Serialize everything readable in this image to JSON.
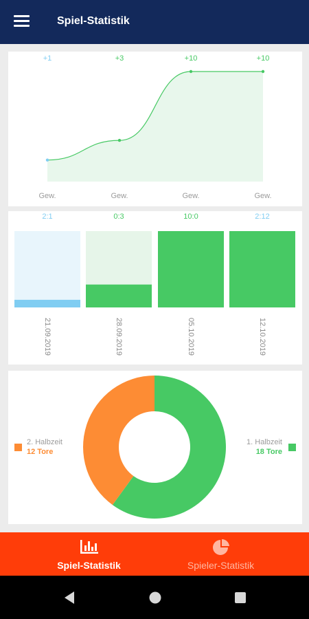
{
  "app_bar": {
    "title": "Spiel-Statistik",
    "menu_icon": "hamburger-menu-icon"
  },
  "colors": {
    "app_bar": "#13295b",
    "accent_green": "#47c964",
    "light_blue": "#80cdf2",
    "orange": "#fd8c34",
    "bottom_nav": "#ff3d09"
  },
  "chart_data": [
    {
      "type": "area",
      "categories": [
        "Gew.",
        "Gew.",
        "Gew.",
        "Gew."
      ],
      "values": [
        1,
        3,
        10,
        10
      ],
      "point_labels": [
        "+1",
        "+3",
        "+10",
        "+10"
      ],
      "line_color": "#47c964",
      "grid": false,
      "legend": "none"
    },
    {
      "type": "bar",
      "categories": [
        "21.09.2019",
        "28.09.2019",
        "05.10.2019",
        "12.10.2019"
      ],
      "scores": [
        "2:1",
        "0:3",
        "10:0",
        "2:12"
      ],
      "values": [
        0.1,
        0.3,
        1.0,
        1.0
      ],
      "score_colors": [
        "#80cdf2",
        "#47c964",
        "#47c964",
        "#80cdf2"
      ],
      "bar_colors": [
        "#80cdf2",
        "#47c964",
        "#47c964",
        "#47c964"
      ],
      "track_colors": [
        "#e8f5fc",
        "#e6f5e9",
        "#e6f5e9",
        "#e6f5e9"
      ],
      "grid": false,
      "legend": "none"
    },
    {
      "type": "pie",
      "style": "donut",
      "slices": [
        {
          "name": "1. Halbzeit",
          "value": 18,
          "label": "18 Tore",
          "color": "#47c964"
        },
        {
          "name": "2. Halbzeit",
          "value": 12,
          "label": "12 Tore",
          "color": "#fd8c34"
        }
      ],
      "legend": "left-and-right"
    }
  ],
  "bottom_nav": {
    "items": [
      {
        "label": "Spiel-Statistik",
        "icon": "bar-chart-icon",
        "active": true
      },
      {
        "label": "Spieler-Statistik",
        "icon": "pie-chart-icon",
        "active": false
      }
    ]
  },
  "system_nav": {
    "back_icon": "back-triangle-icon",
    "home_icon": "home-circle-icon",
    "recents_icon": "recents-square-icon"
  }
}
